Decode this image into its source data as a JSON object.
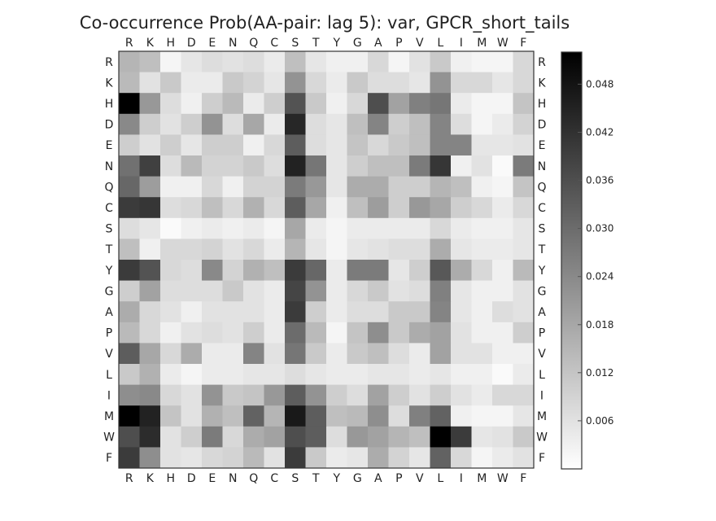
{
  "chart_data": {
    "type": "heatmap",
    "title": "Co-occurrence Prob(AA-pair: lag 5): var, GPCR_short_tails",
    "x_labels": [
      "R",
      "K",
      "H",
      "D",
      "E",
      "N",
      "Q",
      "C",
      "S",
      "T",
      "Y",
      "G",
      "A",
      "P",
      "V",
      "L",
      "I",
      "M",
      "W",
      "F"
    ],
    "y_labels": [
      "R",
      "K",
      "H",
      "D",
      "E",
      "N",
      "Q",
      "C",
      "S",
      "T",
      "Y",
      "G",
      "A",
      "P",
      "V",
      "L",
      "I",
      "M",
      "W",
      "F"
    ],
    "colormap": "greys",
    "color_range": [
      0.0,
      0.052
    ],
    "colorbar_ticks": [
      "0.006",
      "0.012",
      "0.018",
      "0.024",
      "0.030",
      "0.036",
      "0.042",
      "0.048"
    ],
    "grid": false,
    "values": [
      [
        0.015,
        0.013,
        0.002,
        0.005,
        0.007,
        0.006,
        0.007,
        0.004,
        0.013,
        0.005,
        0.003,
        0.003,
        0.008,
        0.002,
        0.006,
        0.011,
        0.003,
        0.002,
        0.002,
        0.008
      ],
      [
        0.014,
        0.006,
        0.011,
        0.004,
        0.004,
        0.011,
        0.009,
        0.005,
        0.022,
        0.008,
        0.004,
        0.011,
        0.007,
        0.007,
        0.005,
        0.022,
        0.008,
        0.008,
        0.005,
        0.008
      ],
      [
        0.052,
        0.021,
        0.007,
        0.003,
        0.01,
        0.014,
        0.004,
        0.01,
        0.035,
        0.011,
        0.003,
        0.008,
        0.036,
        0.019,
        0.026,
        0.028,
        0.004,
        0.002,
        0.002,
        0.012
      ],
      [
        0.024,
        0.01,
        0.006,
        0.01,
        0.022,
        0.007,
        0.018,
        0.004,
        0.044,
        0.007,
        0.005,
        0.013,
        0.025,
        0.01,
        0.013,
        0.025,
        0.007,
        0.002,
        0.004,
        0.009
      ],
      [
        0.01,
        0.006,
        0.01,
        0.005,
        0.01,
        0.01,
        0.003,
        0.008,
        0.033,
        0.007,
        0.005,
        0.012,
        0.008,
        0.011,
        0.013,
        0.025,
        0.025,
        0.005,
        0.005,
        0.006
      ],
      [
        0.029,
        0.039,
        0.007,
        0.014,
        0.009,
        0.009,
        0.011,
        0.007,
        0.045,
        0.028,
        0.005,
        0.01,
        0.013,
        0.013,
        0.027,
        0.041,
        0.003,
        0.006,
        0.001,
        0.027
      ],
      [
        0.031,
        0.02,
        0.003,
        0.003,
        0.008,
        0.003,
        0.009,
        0.009,
        0.027,
        0.021,
        0.005,
        0.017,
        0.017,
        0.01,
        0.01,
        0.015,
        0.013,
        0.003,
        0.002,
        0.012
      ],
      [
        0.04,
        0.041,
        0.007,
        0.008,
        0.013,
        0.008,
        0.016,
        0.008,
        0.033,
        0.018,
        0.003,
        0.013,
        0.02,
        0.01,
        0.021,
        0.018,
        0.01,
        0.008,
        0.004,
        0.008
      ],
      [
        0.007,
        0.005,
        0.001,
        0.003,
        0.004,
        0.003,
        0.004,
        0.002,
        0.018,
        0.004,
        0.002,
        0.004,
        0.004,
        0.004,
        0.004,
        0.008,
        0.004,
        0.003,
        0.003,
        0.005
      ],
      [
        0.013,
        0.003,
        0.008,
        0.008,
        0.009,
        0.006,
        0.008,
        0.004,
        0.015,
        0.005,
        0.002,
        0.005,
        0.006,
        0.007,
        0.007,
        0.017,
        0.005,
        0.004,
        0.004,
        0.005
      ],
      [
        0.04,
        0.035,
        0.008,
        0.007,
        0.024,
        0.009,
        0.016,
        0.013,
        0.04,
        0.031,
        0.004,
        0.027,
        0.027,
        0.005,
        0.01,
        0.034,
        0.017,
        0.008,
        0.003,
        0.014
      ],
      [
        0.01,
        0.019,
        0.007,
        0.007,
        0.007,
        0.011,
        0.006,
        0.004,
        0.038,
        0.022,
        0.004,
        0.008,
        0.011,
        0.006,
        0.007,
        0.026,
        0.005,
        0.003,
        0.003,
        0.006
      ],
      [
        0.017,
        0.008,
        0.006,
        0.003,
        0.006,
        0.006,
        0.006,
        0.004,
        0.04,
        0.01,
        0.004,
        0.007,
        0.007,
        0.011,
        0.011,
        0.025,
        0.005,
        0.003,
        0.007,
        0.006
      ],
      [
        0.014,
        0.008,
        0.003,
        0.006,
        0.007,
        0.006,
        0.01,
        0.004,
        0.03,
        0.014,
        0.002,
        0.012,
        0.023,
        0.011,
        0.017,
        0.019,
        0.006,
        0.003,
        0.003,
        0.01
      ],
      [
        0.033,
        0.018,
        0.008,
        0.017,
        0.004,
        0.004,
        0.025,
        0.006,
        0.028,
        0.011,
        0.004,
        0.011,
        0.013,
        0.007,
        0.004,
        0.019,
        0.006,
        0.006,
        0.003,
        0.003
      ],
      [
        0.011,
        0.016,
        0.004,
        0.002,
        0.004,
        0.004,
        0.005,
        0.005,
        0.007,
        0.005,
        0.004,
        0.004,
        0.005,
        0.005,
        0.004,
        0.005,
        0.003,
        0.003,
        0.001,
        0.004
      ],
      [
        0.023,
        0.024,
        0.008,
        0.006,
        0.022,
        0.011,
        0.012,
        0.021,
        0.033,
        0.022,
        0.01,
        0.007,
        0.019,
        0.01,
        0.006,
        0.01,
        0.006,
        0.004,
        0.008,
        0.008
      ],
      [
        0.052,
        0.045,
        0.012,
        0.006,
        0.016,
        0.013,
        0.032,
        0.015,
        0.047,
        0.033,
        0.013,
        0.014,
        0.023,
        0.007,
        0.026,
        0.032,
        0.003,
        0.002,
        0.002,
        0.005
      ],
      [
        0.036,
        0.043,
        0.006,
        0.01,
        0.027,
        0.008,
        0.017,
        0.019,
        0.036,
        0.033,
        0.007,
        0.021,
        0.019,
        0.015,
        0.013,
        0.052,
        0.04,
        0.005,
        0.006,
        0.011
      ],
      [
        0.04,
        0.023,
        0.006,
        0.005,
        0.008,
        0.009,
        0.014,
        0.006,
        0.04,
        0.011,
        0.004,
        0.005,
        0.017,
        0.009,
        0.005,
        0.032,
        0.008,
        0.002,
        0.004,
        0.006
      ]
    ]
  }
}
